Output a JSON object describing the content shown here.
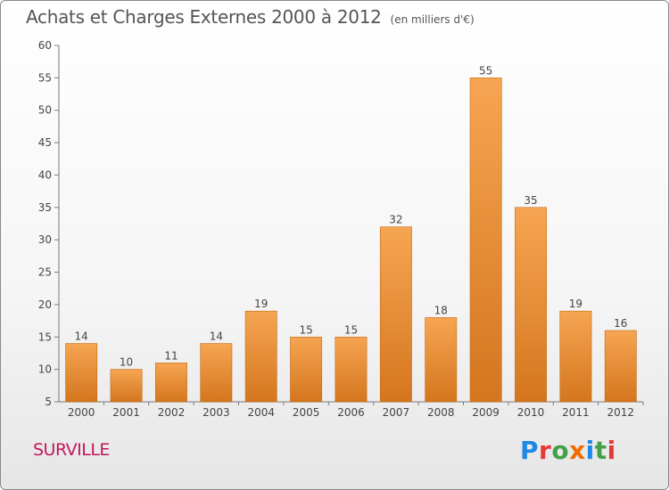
{
  "title": {
    "main": "Achats et Charges Externes 2000 à 2012",
    "unit": "(en milliers d'€)"
  },
  "commune": "SURVILLE",
  "logo": {
    "text": "Proxiti",
    "letter_colors": [
      "#1e88e5",
      "#e53935",
      "#43a047",
      "#ef6c00",
      "#1e88e5",
      "#43a047",
      "#e53935"
    ]
  },
  "chart_data": {
    "type": "bar",
    "categories": [
      "2000",
      "2001",
      "2002",
      "2003",
      "2004",
      "2005",
      "2006",
      "2007",
      "2008",
      "2009",
      "2010",
      "2011",
      "2012"
    ],
    "values": [
      14,
      10,
      11,
      14,
      19,
      15,
      15,
      32,
      18,
      55,
      35,
      19,
      16
    ],
    "ylim": [
      5,
      60
    ],
    "yticks": [
      5,
      10,
      15,
      20,
      25,
      30,
      35,
      40,
      45,
      50,
      55,
      60
    ],
    "grid": false,
    "bar_color_top": "#f6a552",
    "bar_color_bottom": "#d4761e",
    "axis_color": "#7a7a7a",
    "text_color": "#444444"
  }
}
